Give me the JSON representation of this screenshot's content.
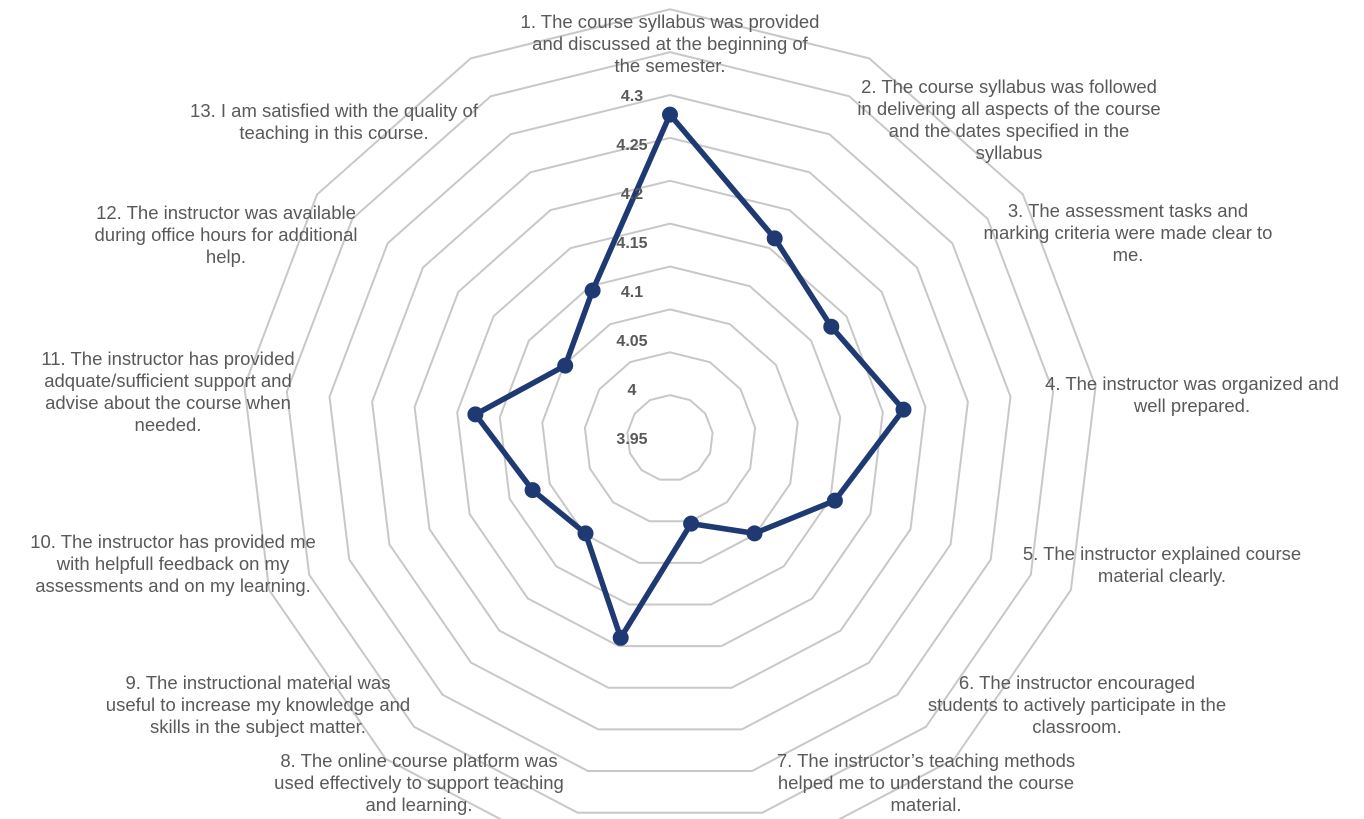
{
  "chart_data": {
    "type": "radar",
    "title": "",
    "rlim": [
      3.95,
      4.3
    ],
    "ticks": [
      "4.3",
      "4.25",
      "4.2",
      "4.15",
      "4.1",
      "4.05",
      "4",
      "3.95"
    ],
    "tick_values": [
      4.3,
      4.25,
      4.2,
      4.15,
      4.1,
      4.05,
      4.0,
      3.95
    ],
    "grid": true,
    "legend": "none",
    "categories": [
      "1. The course syllabus was provided and discussed at the beginning of the semester.",
      "2. The course syllabus was followed in delivering all aspects of the course and the dates specified in the syllabus",
      "3. The assessment tasks  and marking criteria were made clear to me.",
      "4. The instructor was organized and well prepared.",
      "5. The instructor explained course material clearly.",
      "6. The instructor encouraged students to actively participate in the classroom.",
      "7. The instructor’s teaching methods helped me to understand the course material.",
      "8. The online course platform was used effectively to support teaching and learning.",
      "9. The instructional material was useful to increase my knowledge and skills in the subject matter.",
      "10. The instructor has provided me with helpfull feedback on my assessments and on my learning.",
      "11. The instructor has provided adquate/sufficient support and advise about the course when needed.",
      "12. The instructor was available during office hours for additional help.",
      "13. I am satisfied with the quality of teaching in this course."
    ],
    "category_lines": [
      [
        "1. The course syllabus was provided",
        "and discussed at the beginning of",
        "the semester."
      ],
      [
        "2. The course syllabus was followed",
        "in delivering all aspects of the course",
        "and the dates specified in the",
        "syllabus"
      ],
      [
        "3. The assessment tasks  and",
        "marking criteria were made clear to",
        "me."
      ],
      [
        "4. The instructor was organized and",
        "well prepared."
      ],
      [
        "5. The instructor explained course",
        "material clearly."
      ],
      [
        "6. The instructor encouraged",
        "students to actively participate in the",
        "classroom."
      ],
      [
        "7. The instructor’s teaching methods",
        "helped me to understand the course",
        "material."
      ],
      [
        "8. The online course platform was",
        "used effectively to support teaching",
        "and learning."
      ],
      [
        "9. The instructional material was",
        "useful to increase my knowledge and",
        "skills in the subject matter."
      ],
      [
        "10. The instructor has provided me",
        "with helpfull feedback on my",
        "assessments and on my learning."
      ],
      [
        "11. The instructor has provided",
        "adquate/sufficient support and",
        "advise about the course when",
        "needed."
      ],
      [
        "12. The instructor was available",
        "during office hours for additional",
        "help."
      ],
      [
        "13. I am satisfied with the quality of",
        "teaching in this course."
      ]
    ],
    "series": [
      {
        "values": [
          4.28,
          4.18,
          4.15,
          4.19,
          4.13,
          4.08,
          4.04,
          4.16,
          4.08,
          4.1,
          4.15,
          4.08,
          4.12
        ]
      }
    ],
    "colors": {
      "series": "#1f3a73",
      "grid": "#c8c8c8",
      "text": "#595959"
    }
  }
}
